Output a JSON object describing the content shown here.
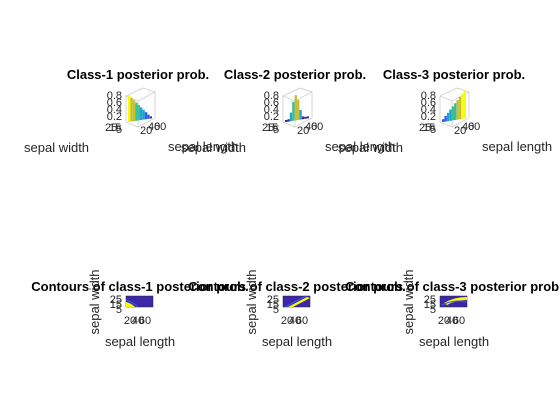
{
  "figure": {
    "background": "#ffffff",
    "colormap": [
      "#3e26a8",
      "#2d5ef0",
      "#1fa5cf",
      "#3bbf9a",
      "#c4be3a",
      "#f9fb0e"
    ]
  },
  "chart_data": [
    {
      "type": "surface",
      "title": "Class-1 posterior prob.",
      "xlabel": "sepal length",
      "ylabel": "sepal width",
      "zlabel": "",
      "xticks": [
        "20",
        "40",
        "60"
      ],
      "yticks": [
        "15",
        "25",
        "5"
      ],
      "zticks": [
        "0.8",
        "0.6",
        "0.4",
        "0.2"
      ],
      "zlim": [
        0,
        1
      ],
      "peak": 0.9,
      "peak_location": "front-left"
    },
    {
      "type": "surface",
      "title": "Class-2 posterior prob.",
      "xlabel": "sepal length",
      "ylabel": "sepal width",
      "zlabel": "",
      "xticks": [
        "20",
        "40",
        "60"
      ],
      "yticks": [
        "15",
        "25",
        "5"
      ],
      "zticks": [
        "0.8",
        "0.6",
        "0.4",
        "0.2"
      ],
      "zlim": [
        0,
        1
      ],
      "peak": 0.9,
      "peak_location": "center"
    },
    {
      "type": "surface",
      "title": "Class-3 posterior prob.",
      "xlabel": "sepal length",
      "ylabel": "sepal width",
      "zlabel": "",
      "xticks": [
        "20",
        "40",
        "60"
      ],
      "yticks": [
        "15",
        "25",
        "5"
      ],
      "zticks": [
        "0.8",
        "0.6",
        "0.4",
        "0.2"
      ],
      "zlim": [
        0,
        1
      ],
      "peak": 1.0,
      "peak_location": "back"
    },
    {
      "type": "contour",
      "title": "Contours of class-1 posterior prob.",
      "xlabel": "sepal length",
      "ylabel": "sepal width",
      "xticks": [
        "20",
        "40",
        "60"
      ],
      "yticks": [
        "25",
        "15",
        "5"
      ],
      "xlim": [
        0,
        70
      ],
      "ylim": [
        0,
        30
      ],
      "highlight_region": "lower-left"
    },
    {
      "type": "contour",
      "title": "Contours of class-2 posterior prob.",
      "xlabel": "sepal length",
      "ylabel": "sepal width",
      "xticks": [
        "20",
        "40",
        "60"
      ],
      "yticks": [
        "25",
        "15",
        "5"
      ],
      "xlim": [
        0,
        70
      ],
      "ylim": [
        0,
        30
      ],
      "highlight_region": "diagonal-band"
    },
    {
      "type": "contour",
      "title": "Contours of class-3 posterior prob.",
      "xlabel": "sepal length",
      "ylabel": "sepal width",
      "xticks": [
        "20",
        "40",
        "60"
      ],
      "yticks": [
        "25",
        "15",
        "5"
      ],
      "xlim": [
        0,
        70
      ],
      "ylim": [
        0,
        30
      ],
      "highlight_region": "upper-right"
    }
  ]
}
